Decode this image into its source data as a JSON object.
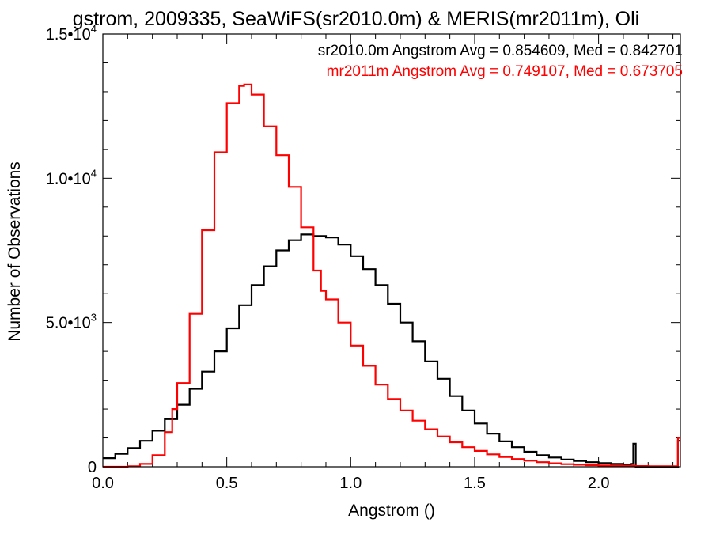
{
  "chart_data": {
    "type": "line",
    "step": true,
    "title": "gstrom, 2009335, SeaWiFS(sr2010.0m) & MERIS(mr2011m), Oli",
    "xlabel": "Angstrom ()",
    "ylabel": "Number of Observations",
    "xlim": [
      0.0,
      2.33
    ],
    "ylim": [
      0,
      15000
    ],
    "x_ticks": [
      {
        "value": 0.0,
        "label": "0.0"
      },
      {
        "value": 0.5,
        "label": "0.5"
      },
      {
        "value": 1.0,
        "label": "1.0"
      },
      {
        "value": 1.5,
        "label": "1.5"
      },
      {
        "value": 2.0,
        "label": "2.0"
      }
    ],
    "y_ticks": [
      {
        "value": 0,
        "mantissa": "0",
        "exp": ""
      },
      {
        "value": 5000,
        "mantissa": "5.0•10",
        "exp": "3"
      },
      {
        "value": 10000,
        "mantissa": "1.0•10",
        "exp": "4"
      },
      {
        "value": 15000,
        "mantissa": "1.5•10",
        "exp": "4"
      }
    ],
    "legend": [
      {
        "text": "sr2010.0m Angstrom Avg = 0.854609, Med = 0.842701",
        "color": "#000000"
      },
      {
        "text": "mr2011m Angstrom Avg = 0.749107, Med = 0.673705",
        "color": "#ff0000"
      }
    ],
    "series": [
      {
        "color": "#000000",
        "x": [
          0.0,
          0.05,
          0.1,
          0.15,
          0.2,
          0.25,
          0.3,
          0.35,
          0.4,
          0.45,
          0.5,
          0.55,
          0.6,
          0.65,
          0.7,
          0.75,
          0.8,
          0.85,
          0.9,
          0.95,
          1.0,
          1.05,
          1.1,
          1.15,
          1.2,
          1.25,
          1.3,
          1.35,
          1.4,
          1.45,
          1.5,
          1.55,
          1.6,
          1.65,
          1.7,
          1.75,
          1.8,
          1.85,
          1.9,
          1.95,
          2.0,
          2.05,
          2.1,
          2.13,
          2.14,
          2.15,
          2.2,
          2.25,
          2.3,
          2.32,
          2.33
        ],
        "values": [
          300,
          450,
          650,
          900,
          1250,
          1650,
          2150,
          2700,
          3300,
          4000,
          4800,
          5600,
          6300,
          6950,
          7500,
          7850,
          8050,
          8000,
          7950,
          7700,
          7300,
          6850,
          6300,
          5650,
          5000,
          4350,
          3650,
          3050,
          2450,
          1950,
          1500,
          1150,
          880,
          680,
          520,
          400,
          320,
          250,
          200,
          160,
          130,
          100,
          80,
          100,
          800,
          0,
          0,
          0,
          0,
          900,
          900
        ]
      },
      {
        "color": "#ff0000",
        "x": [
          0.0,
          0.05,
          0.1,
          0.15,
          0.2,
          0.25,
          0.28,
          0.3,
          0.35,
          0.4,
          0.45,
          0.5,
          0.55,
          0.57,
          0.6,
          0.65,
          0.7,
          0.75,
          0.8,
          0.85,
          0.88,
          0.9,
          0.95,
          1.0,
          1.05,
          1.1,
          1.15,
          1.2,
          1.25,
          1.3,
          1.35,
          1.4,
          1.45,
          1.5,
          1.55,
          1.6,
          1.65,
          1.7,
          1.75,
          1.8,
          1.85,
          1.9,
          1.95,
          2.0,
          2.05,
          2.1,
          2.15,
          2.2,
          2.25,
          2.3,
          2.32,
          2.33
        ],
        "values": [
          0,
          0,
          20,
          100,
          400,
          1200,
          2000,
          2900,
          5300,
          8200,
          10900,
          12600,
          13200,
          13250,
          12900,
          11800,
          10800,
          9700,
          8300,
          6800,
          6100,
          5800,
          5000,
          4200,
          3500,
          2850,
          2350,
          1950,
          1600,
          1300,
          1050,
          850,
          680,
          550,
          430,
          340,
          270,
          210,
          160,
          120,
          90,
          70,
          55,
          45,
          35,
          30,
          25,
          20,
          20,
          20,
          1000,
          1000
        ]
      }
    ]
  }
}
